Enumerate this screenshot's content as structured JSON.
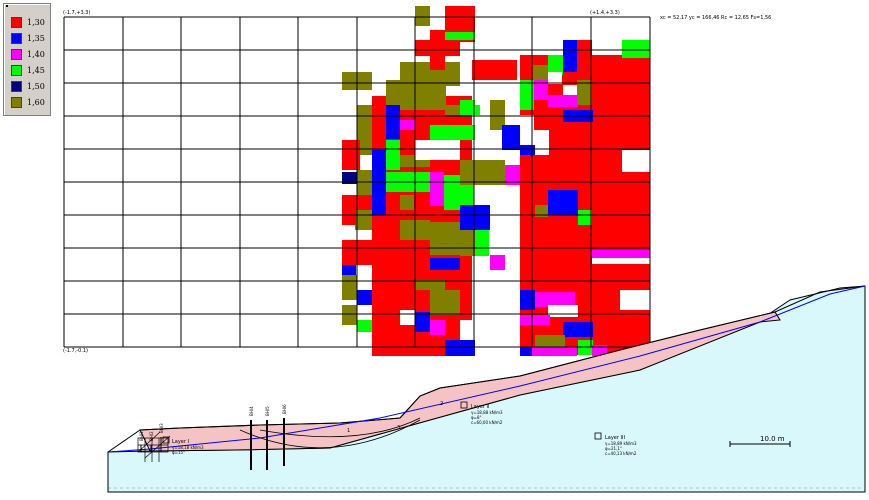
{
  "legend": {
    "items": [
      {
        "label": "1,30",
        "color": "#ff0000"
      },
      {
        "label": "1,35",
        "color": "#0000ff"
      },
      {
        "label": "1,40",
        "color": "#ff00ff"
      },
      {
        "label": "1,45",
        "color": "#00ff00"
      },
      {
        "label": "1,50",
        "color": "#000080"
      },
      {
        "label": "1,60",
        "color": "#808000"
      }
    ]
  },
  "grid": {
    "corner_tl": "(-1.7,+3.3)",
    "corner_tr": "(+1.4,+3.3)",
    "corner_bl": "(-1.7,-0.1)",
    "readout": "xc = 52,17 yc = 166,46 Rc = 12,65 Fs=1,56"
  },
  "profile": {
    "layers": [
      {
        "name": "Layer II",
        "params": [
          "γ=18,88 kN/m3",
          "φ=8°",
          "c=60,00 kN/m2"
        ]
      },
      {
        "name": "Layer III",
        "params": [
          "γ=18,89 kN/m3",
          "φ=21,1°",
          "c=40,13 kN/m2"
        ]
      },
      {
        "name": "Layer I",
        "params": [
          "γ=18,18 kN/m3",
          "φ=15°"
        ]
      }
    ],
    "surface_labels": [
      "2",
      "1",
      "3"
    ],
    "scale_label": "10.0 m",
    "boreholes": [
      "BH/1",
      "BH/2",
      "BH/3",
      "BH/4",
      "BH/5",
      "BH/6"
    ]
  },
  "colors": {
    "grid_line": "#000000",
    "upper_layer": "#f5c3c3",
    "lower_layer": "#d9f8fb",
    "water_line": "#0000ff"
  }
}
